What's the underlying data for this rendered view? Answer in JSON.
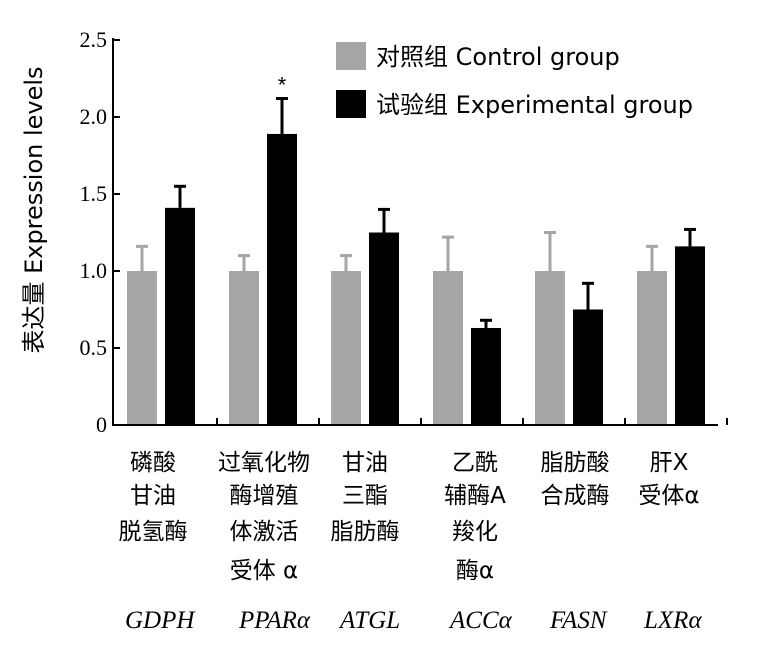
{
  "chart_data": {
    "type": "bar",
    "title": "",
    "ylabel": "表达量 Expression levels",
    "xlabel": "",
    "ylim": [
      0,
      2.5
    ],
    "yticks": [
      "0",
      "0.5",
      "1.0",
      "1.5",
      "2.0",
      "2.5"
    ],
    "categories": [
      {
        "lines": [
          "磷酸",
          "甘油",
          "脱氢酶"
        ],
        "abbr": "GDPH"
      },
      {
        "lines": [
          "过氧化物",
          "酶增殖",
          "体激活",
          "受体 α"
        ],
        "abbr": "PPARα"
      },
      {
        "lines": [
          "甘油",
          "三酯",
          "脂肪酶"
        ],
        "abbr": "ATGL"
      },
      {
        "lines": [
          "乙酰",
          "辅酶A",
          "羧化",
          "酶α"
        ],
        "abbr": "ACCα"
      },
      {
        "lines": [
          "脂肪酸",
          "合成酶"
        ],
        "abbr": "FASN"
      },
      {
        "lines": [
          "肝X",
          "受体α"
        ],
        "abbr": "LXRα"
      }
    ],
    "series": [
      {
        "name": "对照组 Control group",
        "color": "#a6a6a6",
        "values": [
          1.0,
          1.0,
          1.0,
          1.0,
          1.0,
          1.0
        ],
        "errors": [
          0.16,
          0.1,
          0.1,
          0.22,
          0.25,
          0.16
        ]
      },
      {
        "name": "试验组 Experimental group",
        "color": "#000000",
        "values": [
          1.41,
          1.89,
          1.25,
          0.63,
          0.75,
          1.16
        ],
        "errors": [
          0.14,
          0.23,
          0.15,
          0.05,
          0.17,
          0.11
        ]
      }
    ],
    "annotations": [
      {
        "category_index": 1,
        "series_index": 1,
        "text": "*"
      }
    ],
    "legend_position": "top-right",
    "grid": false
  }
}
